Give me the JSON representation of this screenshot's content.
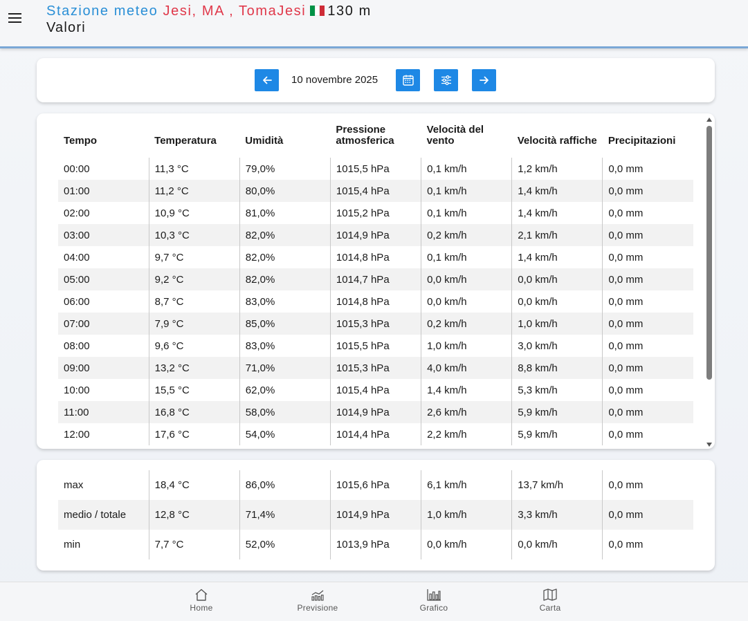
{
  "header": {
    "station_label": "Stazione meteo",
    "location": "Jesi, MA , TomaJesi",
    "altitude": "130 m",
    "subtitle": "Valori",
    "flag_colors": [
      "#009246",
      "#ffffff",
      "#ce2b37"
    ]
  },
  "date_bar": {
    "date": "10 novembre 2025",
    "icons": [
      "arrow-left-icon",
      "calendar-icon",
      "filter-icon",
      "arrow-right-icon"
    ]
  },
  "table": {
    "headers": [
      "Tempo",
      "Temperatura",
      "Umidità",
      "Pressione atmosferica",
      "Velocità del vento",
      "Velocità raffiche",
      "Precipitazioni"
    ],
    "rows": [
      [
        "00:00",
        "11,3 °C",
        "79,0%",
        "1015,5 hPa",
        "0,1 km/h",
        "1,2 km/h",
        "0,0 mm"
      ],
      [
        "01:00",
        "11,2 °C",
        "80,0%",
        "1015,4 hPa",
        "0,1 km/h",
        "1,4 km/h",
        "0,0 mm"
      ],
      [
        "02:00",
        "10,9 °C",
        "81,0%",
        "1015,2 hPa",
        "0,1 km/h",
        "1,4 km/h",
        "0,0 mm"
      ],
      [
        "03:00",
        "10,3 °C",
        "82,0%",
        "1014,9 hPa",
        "0,2 km/h",
        "2,1 km/h",
        "0,0 mm"
      ],
      [
        "04:00",
        "9,7 °C",
        "82,0%",
        "1014,8 hPa",
        "0,1 km/h",
        "1,4 km/h",
        "0,0 mm"
      ],
      [
        "05:00",
        "9,2 °C",
        "82,0%",
        "1014,7 hPa",
        "0,0 km/h",
        "0,0 km/h",
        "0,0 mm"
      ],
      [
        "06:00",
        "8,7 °C",
        "83,0%",
        "1014,8 hPa",
        "0,0 km/h",
        "0,0 km/h",
        "0,0 mm"
      ],
      [
        "07:00",
        "7,9 °C",
        "85,0%",
        "1015,3 hPa",
        "0,2 km/h",
        "1,0 km/h",
        "0,0 mm"
      ],
      [
        "08:00",
        "9,6 °C",
        "83,0%",
        "1015,5 hPa",
        "1,0 km/h",
        "3,0 km/h",
        "0,0 mm"
      ],
      [
        "09:00",
        "13,2 °C",
        "71,0%",
        "1015,3 hPa",
        "4,0 km/h",
        "8,8 km/h",
        "0,0 mm"
      ],
      [
        "10:00",
        "15,5 °C",
        "62,0%",
        "1015,4 hPa",
        "1,4 km/h",
        "5,3 km/h",
        "0,0 mm"
      ],
      [
        "11:00",
        "16,8 °C",
        "58,0%",
        "1014,9 hPa",
        "2,6 km/h",
        "5,9 km/h",
        "0,0 mm"
      ],
      [
        "12:00",
        "17,6 °C",
        "54,0%",
        "1014,4 hPa",
        "2,2 km/h",
        "5,9 km/h",
        "0,0 mm"
      ]
    ]
  },
  "summary": {
    "rows": [
      [
        "max",
        "18,4 °C",
        "86,0%",
        "1015,6 hPa",
        "6,1 km/h",
        "13,7 km/h",
        "0,0 mm"
      ],
      [
        "medio / totale",
        "12,8 °C",
        "71,4%",
        "1014,9 hPa",
        "1,0 km/h",
        "3,3 km/h",
        "0,0 mm"
      ],
      [
        "min",
        "7,7 °C",
        "52,0%",
        "1013,9 hPa",
        "0,0 km/h",
        "0,0 km/h",
        "0,0 mm"
      ]
    ]
  },
  "bottom_nav": {
    "items": [
      {
        "label": "Home",
        "icon": "home-icon"
      },
      {
        "label": "Previsione",
        "icon": "forecast-icon"
      },
      {
        "label": "Grafico",
        "icon": "chart-icon"
      },
      {
        "label": "Carta",
        "icon": "map-icon"
      }
    ]
  },
  "colors": {
    "accent": "#1e88e5",
    "title_blue": "#2a8fd6",
    "title_red": "#e0384a"
  }
}
